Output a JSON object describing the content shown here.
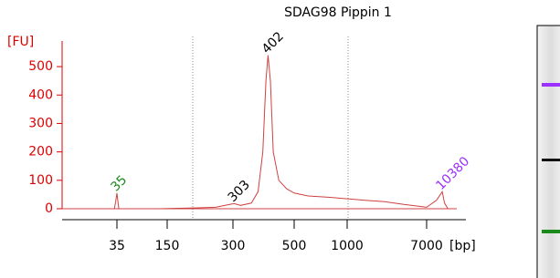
{
  "chart_data": {
    "type": "line",
    "title": "SDAG98 Pippin 1",
    "ylabel": "[FU]",
    "xlabel": "[bp]",
    "x": [
      10,
      33,
      34,
      35,
      36,
      37,
      120,
      200,
      250,
      290,
      303,
      320,
      350,
      370,
      385,
      395,
      402,
      410,
      420,
      440,
      470,
      500,
      600,
      800,
      1000,
      1500,
      2500,
      4000,
      6000,
      7000,
      9000,
      10380,
      11000,
      12000,
      15000
    ],
    "values": [
      0,
      0,
      25,
      55,
      25,
      0,
      0,
      3,
      5,
      15,
      18,
      12,
      20,
      60,
      200,
      450,
      540,
      450,
      200,
      100,
      70,
      55,
      45,
      40,
      35,
      30,
      25,
      15,
      8,
      5,
      30,
      60,
      20,
      0,
      0
    ],
    "color": "#d04040",
    "axis_color": "#e00000",
    "xlim": [
      10,
      15000
    ],
    "xticks": [
      35,
      150,
      300,
      500,
      1000,
      7000
    ],
    "xscale": "log",
    "ylim": [
      0,
      590
    ],
    "yticks": [
      0,
      100,
      200,
      300,
      400,
      500
    ],
    "peaks": [
      {
        "size": 35,
        "color": "#1a8a1a"
      },
      {
        "size": 303,
        "color": "#000000"
      },
      {
        "size": 402,
        "color": "#000000"
      },
      {
        "size": 10380,
        "color": "#9b30ff"
      }
    ]
  }
}
